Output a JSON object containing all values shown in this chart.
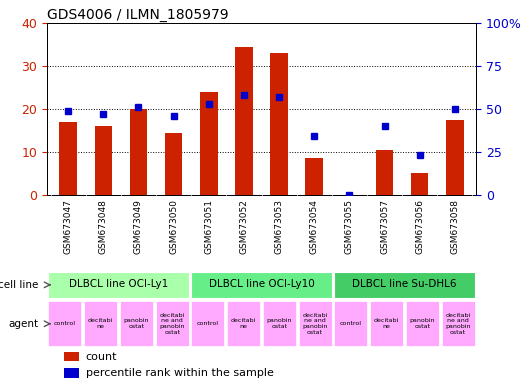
{
  "title": "GDS4006 / ILMN_1805979",
  "samples": [
    "GSM673047",
    "GSM673048",
    "GSM673049",
    "GSM673050",
    "GSM673051",
    "GSM673052",
    "GSM673053",
    "GSM673054",
    "GSM673055",
    "GSM673057",
    "GSM673056",
    "GSM673058"
  ],
  "counts": [
    17.0,
    16.0,
    20.0,
    14.5,
    24.0,
    34.5,
    33.0,
    8.5,
    0.0,
    10.5,
    5.0,
    17.5
  ],
  "percentiles": [
    49,
    47,
    51,
    46,
    53,
    58,
    57,
    34,
    0,
    40,
    23,
    50
  ],
  "bar_color": "#cc2200",
  "dot_color": "#0000cc",
  "ylim_left": [
    0,
    40
  ],
  "ylim_right": [
    0,
    100
  ],
  "yticks_left": [
    0,
    10,
    20,
    30,
    40
  ],
  "yticks_right": [
    0,
    25,
    50,
    75,
    100
  ],
  "ytick_labels_right": [
    "0",
    "25",
    "50",
    "75",
    "100%"
  ],
  "grid_color": "#000000",
  "bg_color": "#ffffff",
  "plot_bg": "#ffffff",
  "cell_lines": [
    {
      "label": "DLBCL line OCI-Ly1",
      "start": 0,
      "end": 4,
      "color": "#aaffaa"
    },
    {
      "label": "DLBCL line OCI-Ly10",
      "start": 4,
      "end": 8,
      "color": "#66ee88"
    },
    {
      "label": "DLBCL line Su-DHL6",
      "start": 8,
      "end": 12,
      "color": "#44cc66"
    }
  ],
  "agent_texts": [
    "control",
    "decitabi\nne",
    "panobin\nostat",
    "decitabi\nne and\npanobin\nostat",
    "control",
    "decitabi\nne",
    "panobin\nostat",
    "decitabi\nne and\npanobin\nostat",
    "control",
    "decitabi\nne",
    "panobin\nostat",
    "decitabi\nne and\npanobin\nostat"
  ],
  "agent_color": "#ffaaff",
  "tick_bg_color": "#cccccc",
  "legend_count_color": "#cc2200",
  "legend_pct_color": "#0000cc",
  "bar_width": 0.5
}
